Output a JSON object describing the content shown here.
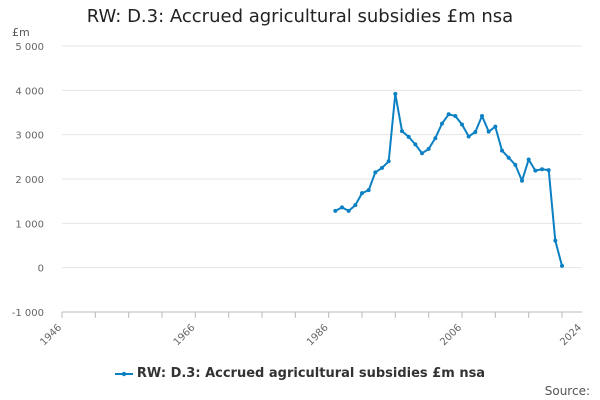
{
  "chart_data": {
    "type": "line",
    "title": "RW: D.3: Accrued agricultural subsidies £m nsa",
    "ylabel": "£m",
    "xlim": [
      1946,
      2024
    ],
    "ylim": [
      -1000,
      5000
    ],
    "x_ticks": [
      {
        "value": 1946,
        "label": "1946"
      },
      {
        "value": 1966,
        "label": "1966"
      },
      {
        "value": 1986,
        "label": "1986"
      },
      {
        "value": 2006,
        "label": "2006"
      },
      {
        "value": 2024,
        "label": "2024"
      }
    ],
    "y_ticks": [
      {
        "value": 5000,
        "label": "5 000"
      },
      {
        "value": 4000,
        "label": "4 000"
      },
      {
        "value": 3000,
        "label": "3 000"
      },
      {
        "value": 2000,
        "label": "2 000"
      },
      {
        "value": 1000,
        "label": "1 000"
      },
      {
        "value": 0,
        "label": "0"
      },
      {
        "value": -1000,
        "label": "-1 000"
      }
    ],
    "grid": true,
    "legend_position": "bottom",
    "series": [
      {
        "name": "RW: D.3: Accrued agricultural subsidies £m nsa",
        "color": "#0b80c3",
        "x": [
          1987,
          1988,
          1989,
          1990,
          1991,
          1992,
          1993,
          1994,
          1995,
          1996,
          1997,
          1998,
          1999,
          2000,
          2001,
          2002,
          2003,
          2004,
          2005,
          2006,
          2007,
          2008,
          2009,
          2010,
          2011,
          2012,
          2013,
          2014,
          2015,
          2016,
          2017,
          2018,
          2019,
          2020,
          2021
        ],
        "values": [
          1280,
          1360,
          1280,
          1410,
          1680,
          1750,
          2150,
          2250,
          2400,
          3920,
          3080,
          2950,
          2780,
          2580,
          2680,
          2920,
          3250,
          3460,
          3420,
          3230,
          2960,
          3060,
          3420,
          3070,
          3180,
          2640,
          2480,
          2320,
          1960,
          2440,
          2190,
          2220,
          2200,
          610,
          40
        ]
      }
    ]
  },
  "legend": {
    "label": "RW: D.3: Accrued agricultural subsidies £m nsa"
  },
  "source_label": "Source:"
}
